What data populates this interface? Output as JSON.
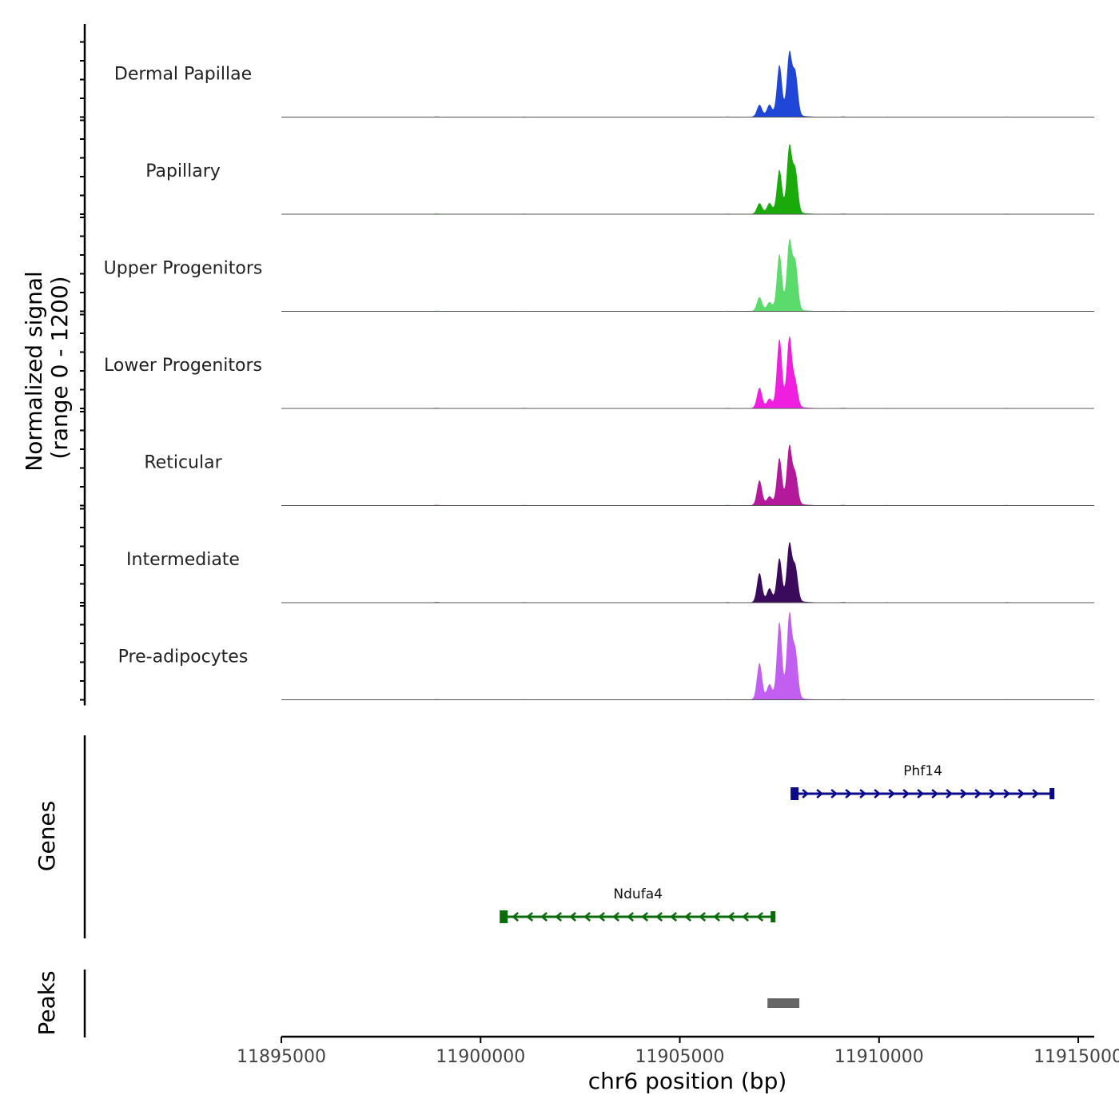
{
  "chart_data": {
    "type": "area",
    "title": "",
    "signal_ylabel": "Normalized signal\n(range 0 - 1200)",
    "y_range": [
      0,
      1200
    ],
    "xlabel": "chr6 position (bp)",
    "chromosome": "chr6",
    "xlim": [
      11895000,
      11915400
    ],
    "xticks": [
      11895000,
      11900000,
      11905000,
      11910000,
      11915000
    ],
    "xtick_labels": [
      "11895000",
      "11900000",
      "11905000",
      "11910000",
      "11915000"
    ],
    "tracks": [
      {
        "name": "Dermal Papillae",
        "color": "#1f46d6",
        "peaks": [
          [
            11907000,
            180
          ],
          [
            11907250,
            170
          ],
          [
            11907500,
            780
          ],
          [
            11907750,
            960
          ],
          [
            11907900,
            650
          ]
        ]
      },
      {
        "name": "Papillary",
        "color": "#1aaa0a",
        "peaks": [
          [
            11907000,
            160
          ],
          [
            11907250,
            150
          ],
          [
            11907500,
            660
          ],
          [
            11907750,
            1020
          ],
          [
            11907900,
            650
          ]
        ]
      },
      {
        "name": "Upper Progenitors",
        "color": "#5bdb6b",
        "peaks": [
          [
            11907000,
            210
          ],
          [
            11907250,
            120
          ],
          [
            11907500,
            860
          ],
          [
            11907750,
            1050
          ],
          [
            11907900,
            720
          ]
        ]
      },
      {
        "name": "Lower Progenitors",
        "color": "#f01fe0",
        "peaks": [
          [
            11907000,
            310
          ],
          [
            11907250,
            130
          ],
          [
            11907500,
            1050
          ],
          [
            11907750,
            1070
          ],
          [
            11907900,
            380
          ]
        ]
      },
      {
        "name": "Reticular",
        "color": "#b5199b",
        "peaks": [
          [
            11907000,
            380
          ],
          [
            11907250,
            120
          ],
          [
            11907500,
            710
          ],
          [
            11907750,
            890
          ],
          [
            11907900,
            460
          ]
        ]
      },
      {
        "name": "Intermediate",
        "color": "#3a0a5c",
        "peaks": [
          [
            11907000,
            450
          ],
          [
            11907250,
            200
          ],
          [
            11907500,
            660
          ],
          [
            11907750,
            880
          ],
          [
            11907900,
            520
          ]
        ]
      },
      {
        "name": "Pre-adipocytes",
        "color": "#c35ff0",
        "peaks": [
          [
            11907000,
            560
          ],
          [
            11907250,
            220
          ],
          [
            11907500,
            1180
          ],
          [
            11907750,
            1290
          ],
          [
            11907900,
            720
          ]
        ]
      }
    ],
    "genes_label": "Genes",
    "genes": [
      {
        "name": "Phf14",
        "start": 11907800,
        "end": 11914400,
        "strand": "+",
        "color": "#0b0b8a"
      },
      {
        "name": "Ndufa4",
        "start": 11900500,
        "end": 11907400,
        "strand": "-",
        "color": "#0a6b0a"
      }
    ],
    "peaks_label": "Peaks",
    "peak_regions": [
      [
        11907200,
        11908000
      ]
    ],
    "peak_color": "#666666"
  }
}
